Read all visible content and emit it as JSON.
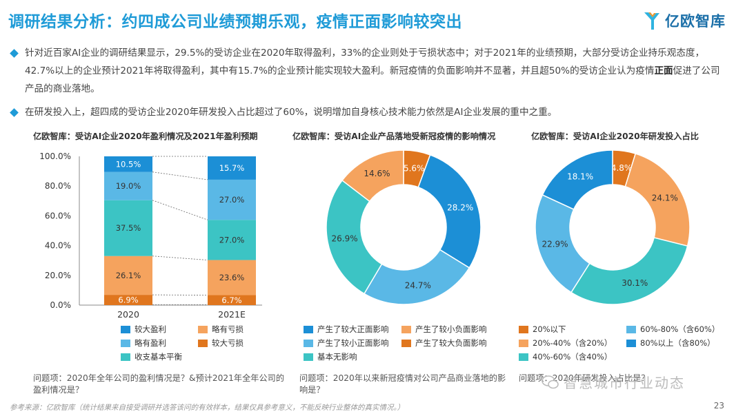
{
  "header": {
    "title": "调研结果分析：约四成公司业绩预期乐观，疫情正面影响较突出",
    "logo_text": "亿欧智库"
  },
  "bullets": [
    {
      "part1": "针对近百家AI企业的调研结果显示，29.5%的受访企业在2020年取得盈利，33%的企业则处于亏损状态中；对于2021年的业绩预期，大部分受访企业持乐观态度，42.7%以上的企业预计2021年将取得盈利，其中有15.7%的企业预计能实现较大盈利。新冠疫情的负面影响并不显著，并且超50%的受访企业认为疫情",
      "bold": "正面",
      "part2": "促进了公司产品的商业落地。"
    },
    {
      "part1": "在研发投入上，超四成的受访企业2020年研发投入占比超过了60%，说明增加自身核心技术能力依然是AI企业发展的重中之重。"
    }
  ],
  "colors": {
    "dark_blue": "#1c8fd6",
    "light_blue": "#5ab8e6",
    "teal": "#3cc4c4",
    "light_orange": "#f5a35e",
    "dark_orange": "#e0761e"
  },
  "chart_data": [
    {
      "type": "bar",
      "title": "亿欧智库：受访AI企业2020年盈利情况及2021年盈利预期",
      "categories": [
        "2020",
        "2021E"
      ],
      "stacked": true,
      "ylim": [
        0,
        100
      ],
      "yticks": [
        "0.0%",
        "20.0%",
        "40.0%",
        "60.0%",
        "80.0%",
        "100.0%"
      ],
      "series": [
        {
          "name": "较大亏损",
          "color": "#e0761e",
          "values": [
            6.9,
            6.7
          ],
          "labels": [
            "6.9%",
            "6.7%"
          ]
        },
        {
          "name": "略有亏损",
          "color": "#f5a35e",
          "values": [
            26.1,
            23.6
          ],
          "labels": [
            "26.1%",
            "23.6%"
          ]
        },
        {
          "name": "收支基本平衡",
          "color": "#3cc4c4",
          "values": [
            37.5,
            27.0
          ],
          "labels": [
            "37.5%",
            "27.0%"
          ]
        },
        {
          "name": "略有盈利",
          "color": "#5ab8e6",
          "values": [
            19.0,
            27.0
          ],
          "labels": [
            "19.0%",
            "27.0%"
          ]
        },
        {
          "name": "较大盈利",
          "color": "#1c8fd6",
          "values": [
            10.5,
            15.7
          ],
          "labels": [
            "10.5%",
            "15.7%"
          ]
        }
      ],
      "legend": [
        "较大盈利",
        "略有亏损",
        "略有盈利",
        "较大亏损",
        "收支基本平衡"
      ],
      "question": "问题项：2020年全年公司的盈利情况是？&预计2021年全年公司的盈利情况是？"
    },
    {
      "type": "pie",
      "title": "亿欧智库：受访AI企业产品落地受新冠疫情的影响情况",
      "slices": [
        {
          "name": "产生了较大负面影响",
          "value": 5.6,
          "label": "5.6%",
          "color": "#e0761e"
        },
        {
          "name": "产生了较大正面影响",
          "value": 28.2,
          "label": "28.2%",
          "color": "#1c8fd6"
        },
        {
          "name": "产生了较小正面影响",
          "value": 24.7,
          "label": "24.7%",
          "color": "#5ab8e6"
        },
        {
          "name": "基本无影响",
          "value": 26.9,
          "label": "26.9%",
          "color": "#3cc4c4"
        },
        {
          "name": "产生了较小负面影响",
          "value": 14.6,
          "label": "14.6%",
          "color": "#f5a35e"
        }
      ],
      "legend": [
        "产生了较大正面影响",
        "产生了较小负面影响",
        "产生了较小正面影响",
        "产生了较大负面影响",
        "基本无影响"
      ],
      "question": "问题项：2020年以来新冠疫情对公司产品商业落地的影响是？"
    },
    {
      "type": "pie",
      "title": "亿欧智库：受访AI企业2020年研发投入占比",
      "slices": [
        {
          "name": "20%以下",
          "value": 4.8,
          "label": "4.8%",
          "color": "#e0761e"
        },
        {
          "name": "20%-40%（含20%）",
          "value": 24.1,
          "label": "24.1%",
          "color": "#f5a35e"
        },
        {
          "name": "40%-60%（含40%）",
          "value": 30.1,
          "label": "30.1%",
          "color": "#3cc4c4"
        },
        {
          "name": "60%-80%（含60%）",
          "value": 22.9,
          "label": "22.9%",
          "color": "#5ab8e6"
        },
        {
          "name": "80%以上（含80%）",
          "value": 18.1,
          "label": "18.1%",
          "color": "#1c8fd6"
        }
      ],
      "legend": [
        "20%以下",
        "60%-80%（含60%）",
        "20%-40%（含20%）",
        "80%以上（含80%）",
        "40%-60%（含40%）"
      ],
      "question": "问题项：2020年研发投入占比是？"
    }
  ],
  "footer": {
    "source": "参考来源：亿欧智库（统计结果来自接受调研并选答该问的有效样本，结果仅具参考意义，不能反映行业整体的真实情况。）",
    "page_number": "23",
    "watermark": "智慧城市行业动态"
  }
}
